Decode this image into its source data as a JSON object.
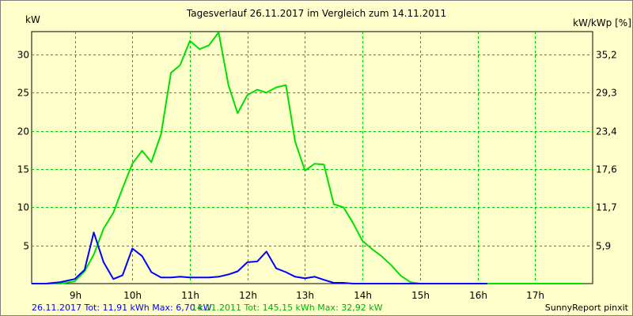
{
  "chart_data": {
    "type": "line",
    "title": "Tagesverlauf 26.11.2017 im Vergleich zum 14.11.2011",
    "ylabel": "kW",
    "y2label": "kW/kWp [%]",
    "ylim": [
      0,
      33
    ],
    "xlim": [
      8.25,
      18.0
    ],
    "grid": true,
    "x_ticks": [
      9,
      10,
      11,
      12,
      13,
      14,
      15,
      16,
      17
    ],
    "x_tick_labels": [
      "9h",
      "10h",
      "11h",
      "12h",
      "13h",
      "14h",
      "15h",
      "16h",
      "17h"
    ],
    "y_ticks": [
      5,
      10,
      15,
      20,
      25,
      30
    ],
    "y_tick_labels": [
      "5",
      "10",
      "15",
      "20",
      "25",
      "30"
    ],
    "y2_ticks": [
      5,
      10,
      15,
      20,
      25,
      30
    ],
    "y2_tick_labels": [
      "5,9",
      "11,7",
      "17,6",
      "23,4",
      "29,3",
      "35,2"
    ],
    "series": [
      {
        "name": "26.11.2017",
        "color": "#0000ff",
        "x": [
          8.25,
          8.5,
          8.75,
          9.0,
          9.17,
          9.33,
          9.5,
          9.67,
          9.83,
          10.0,
          10.17,
          10.33,
          10.5,
          10.67,
          10.83,
          11.0,
          11.17,
          11.33,
          11.5,
          11.67,
          11.83,
          12.0,
          12.17,
          12.33,
          12.5,
          12.67,
          12.83,
          13.0,
          13.17,
          13.33,
          13.5,
          13.67,
          13.83,
          14.0,
          14.17,
          14.33,
          14.5,
          14.67,
          14.83,
          15.0,
          15.17,
          15.33,
          15.5,
          15.67,
          15.83,
          16.0,
          16.17
        ],
        "values": [
          0,
          0,
          0.2,
          0.6,
          1.8,
          6.7,
          2.8,
          0.6,
          1.1,
          4.6,
          3.6,
          1.5,
          0.8,
          0.8,
          0.9,
          0.8,
          0.8,
          0.8,
          0.9,
          1.2,
          1.6,
          2.8,
          2.9,
          4.2,
          2.0,
          1.5,
          0.9,
          0.7,
          0.9,
          0.5,
          0.1,
          0.1,
          0,
          0,
          0,
          0,
          0,
          0,
          0,
          0,
          0,
          0,
          0,
          0,
          0,
          0,
          0
        ]
      },
      {
        "name": "14.11.2011",
        "color": "#00e000",
        "x": [
          8.25,
          8.5,
          8.75,
          9.0,
          9.17,
          9.33,
          9.5,
          9.67,
          9.83,
          10.0,
          10.17,
          10.33,
          10.5,
          10.67,
          10.83,
          11.0,
          11.17,
          11.33,
          11.5,
          11.67,
          11.83,
          12.0,
          12.17,
          12.33,
          12.5,
          12.67,
          12.83,
          13.0,
          13.17,
          13.33,
          13.5,
          13.67,
          13.83,
          14.0,
          14.17,
          14.33,
          14.5,
          14.67,
          14.83,
          15.0,
          15.17,
          15.33,
          15.5,
          15.67,
          15.83,
          16.0,
          16.17,
          16.33,
          16.5,
          16.67,
          16.83,
          17.0,
          17.17,
          17.33,
          17.5,
          17.67,
          17.83
        ],
        "values": [
          0,
          0,
          0,
          0.3,
          1.6,
          3.8,
          7.2,
          9.3,
          12.5,
          15.7,
          17.4,
          15.9,
          19.6,
          27.6,
          28.6,
          31.8,
          30.7,
          31.2,
          32.9,
          26.0,
          22.3,
          24.7,
          25.4,
          25.0,
          25.7,
          26.0,
          18.6,
          14.8,
          15.7,
          15.6,
          10.4,
          10.0,
          8.0,
          5.6,
          4.5,
          3.6,
          2.4,
          1.0,
          0.2,
          0,
          0,
          0,
          0,
          0,
          0,
          0,
          0,
          0,
          0,
          0,
          0,
          0,
          0,
          0,
          0,
          0,
          0
        ]
      }
    ]
  },
  "footer": {
    "series1_summary": "26.11.2017 Tot: 11,91 kWh Max: 6,70 kW",
    "series2_summary": "14.11.2011 Tot: 145,15 kWh Max: 32,92 kW",
    "credit": "SunnyReport pinxit"
  }
}
